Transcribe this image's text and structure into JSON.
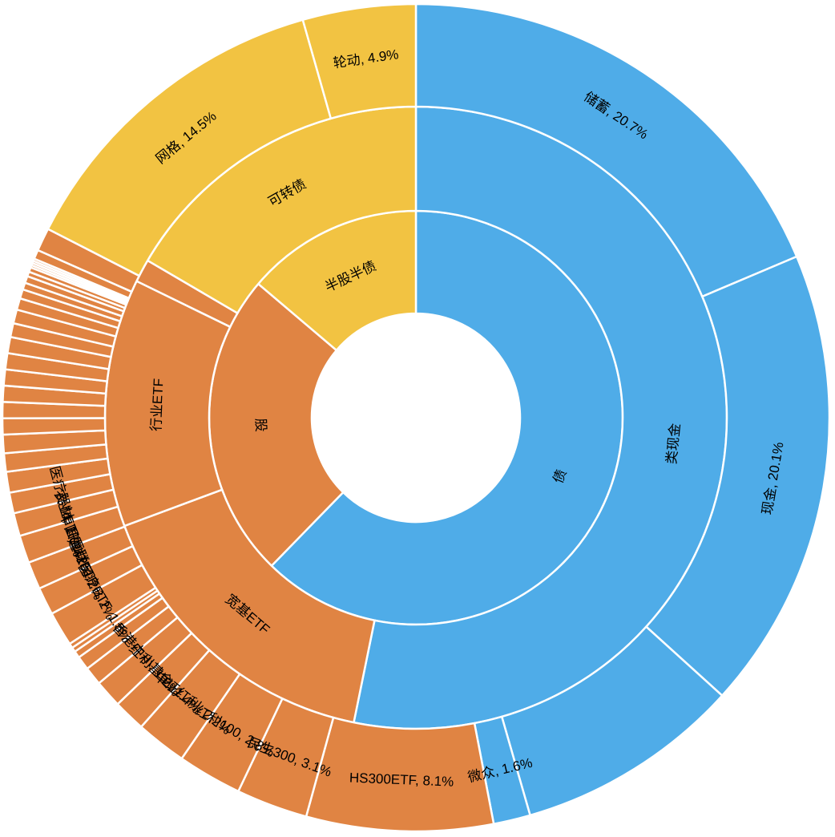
{
  "chart_data": {
    "type": "sunburst",
    "colors": {
      "bond": "#4FACE8",
      "half": "#F2C342",
      "equity": "#E08443"
    },
    "rings": [
      [
        {
          "name": "债",
          "value": 62.3,
          "color": "bond",
          "label": "债"
        },
        {
          "name": "股",
          "value": 23.9,
          "color": "equity",
          "label": "股"
        },
        {
          "name": "半股半债",
          "value": 13.8,
          "color": "half",
          "label": "半股半债"
        }
      ],
      [
        {
          "name": "类现金",
          "value": 62.3,
          "color": "bond",
          "label": "类现金"
        },
        {
          "name": "宽基ETF",
          "value": 18.9,
          "color": "equity",
          "label": "宽基ETF"
        },
        {
          "name": "行业ETF",
          "value": 15.1,
          "color": "equity",
          "label": "行业ETF"
        },
        {
          "name": "",
          "value": 1.4,
          "color": "equity",
          "label": ""
        },
        {
          "name": "可转债",
          "value": 19.4,
          "color": "half",
          "label": "可转债"
        }
      ],
      [
        {
          "name": "储蓄",
          "value": 20.7,
          "color": "bond",
          "label": "储蓄, 20.7%"
        },
        {
          "name": "现金",
          "value": 20.1,
          "color": "bond",
          "label": "现金, 20.1%"
        },
        {
          "name": "",
          "value": 9.8,
          "color": "bond",
          "label": ""
        },
        {
          "name": "微众",
          "value": 1.6,
          "color": "bond",
          "label": "微众, 1.6%"
        },
        {
          "name": "HS300ETF",
          "value": 8.1,
          "color": "equity",
          "label": "HS300ETF, 8.1%"
        },
        {
          "name": "民生300",
          "value": 3.1,
          "color": "equity",
          "label": "民生300, 3.1%"
        },
        {
          "name": "红利100",
          "value": 2.8,
          "color": "equity",
          "label": "红利100, 2.8%"
        },
        {
          "name": "中证红利",
          "value": 2.2,
          "color": "equity",
          "label": "中证红利, 2.2%"
        },
        {
          "name": "红利基金",
          "value": 1.4,
          "color": "equity",
          "label": "红利基金, 1.4%"
        },
        {
          "name": "香港中小",
          "value": 1.2,
          "color": "equity",
          "label": "香港中小, 1.2%"
        },
        {
          "name": "",
          "value": 0.8,
          "color": "equity",
          "label": ""
        },
        {
          "name": "",
          "value": 0.6,
          "color": "equity",
          "label": ""
        },
        {
          "name": "",
          "value": 0.3,
          "color": "equity",
          "label": ""
        },
        {
          "name": "",
          "value": 0.2,
          "color": "equity",
          "label": ""
        },
        {
          "name": "",
          "value": 0.2,
          "color": "equity",
          "label": ""
        },
        {
          "name": "医疗ETF",
          "value": 1.5,
          "color": "equity",
          "label": "医疗ETF, 1.5%"
        },
        {
          "name": "建材ETF",
          "value": 1.2,
          "color": "equity",
          "label": "建材ETF, 1.2%"
        },
        {
          "name": "中国互联",
          "value": 1.2,
          "color": "equity",
          "label": "中国互联, 1.2%"
        },
        {
          "name": "农业ETF",
          "value": 1.2,
          "color": "equity",
          "label": "农业ETF, 1.2%"
        },
        {
          "name": "医疗器材",
          "value": 1.0,
          "color": "equity",
          "label": "医疗器材, 1.0%"
        },
        {
          "name": "",
          "value": 0.9,
          "color": "equity",
          "label": ""
        },
        {
          "name": "",
          "value": 0.9,
          "color": "equity",
          "label": ""
        },
        {
          "name": "",
          "value": 0.8,
          "color": "equity",
          "label": ""
        },
        {
          "name": "",
          "value": 0.8,
          "color": "equity",
          "label": ""
        },
        {
          "name": "",
          "value": 0.7,
          "color": "equity",
          "label": ""
        },
        {
          "name": "",
          "value": 0.7,
          "color": "equity",
          "label": ""
        },
        {
          "name": "",
          "value": 0.7,
          "color": "equity",
          "label": ""
        },
        {
          "name": "",
          "value": 0.7,
          "color": "equity",
          "label": ""
        },
        {
          "name": "",
          "value": 0.7,
          "color": "equity",
          "label": ""
        },
        {
          "name": "",
          "value": 0.7,
          "color": "equity",
          "label": ""
        },
        {
          "name": "",
          "value": 0.6,
          "color": "equity",
          "label": ""
        },
        {
          "name": "",
          "value": 0.6,
          "color": "equity",
          "label": ""
        },
        {
          "name": "",
          "value": 0.5,
          "color": "equity",
          "label": ""
        },
        {
          "name": "",
          "value": 0.4,
          "color": "equity",
          "label": ""
        },
        {
          "name": "",
          "value": 0.3,
          "color": "equity",
          "label": ""
        },
        {
          "name": "",
          "value": 0.3,
          "color": "equity",
          "label": ""
        },
        {
          "name": "",
          "value": 0.2,
          "color": "equity",
          "label": ""
        },
        {
          "name": "",
          "value": 0.2,
          "color": "equity",
          "label": ""
        },
        {
          "name": "",
          "value": 0.1,
          "color": "equity",
          "label": ""
        },
        {
          "name": "",
          "value": 0.1,
          "color": "equity",
          "label": ""
        },
        {
          "name": "",
          "value": 0.1,
          "color": "equity",
          "label": ""
        },
        {
          "name": "",
          "value": 0.1,
          "color": "equity",
          "label": ""
        },
        {
          "name": "",
          "value": 0.4,
          "color": "equity",
          "label": ""
        },
        {
          "name": "",
          "value": 1.0,
          "color": "equity",
          "label": ""
        },
        {
          "name": "网格",
          "value": 14.5,
          "color": "half",
          "label": "网格, 14.5%"
        },
        {
          "name": "轮动",
          "value": 4.9,
          "color": "half",
          "label": "轮动, 4.9%"
        }
      ]
    ]
  }
}
